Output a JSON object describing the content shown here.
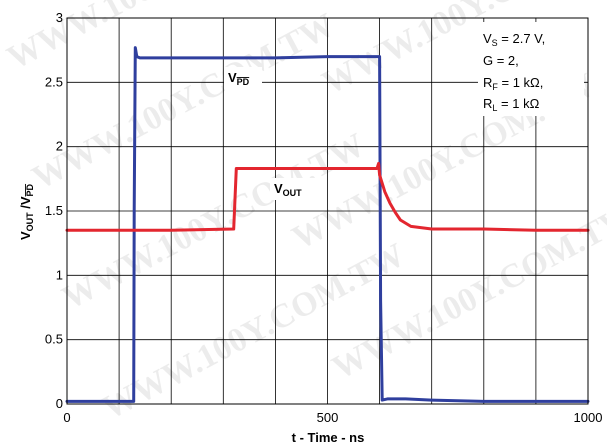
{
  "chart_data": {
    "type": "line",
    "xlabel": "t - Time - ns",
    "ylabel": "VOUT /VPD",
    "xlim": [
      0,
      1000
    ],
    "ylim": [
      0,
      3
    ],
    "xticks": [
      "0",
      "500",
      "1000"
    ],
    "yticks": [
      "0",
      "0.5",
      "1",
      "1.5",
      "2",
      "2.5",
      "3"
    ],
    "grid": true,
    "colors": {
      "VPD": "#2f3f9e",
      "VOUT": "#e3262f"
    },
    "series": [
      {
        "name": "VPD",
        "x": [
          0,
          120,
          128,
          129,
          131,
          134,
          140,
          200,
          300,
          400,
          500,
          550,
          595,
          600,
          602,
          605,
          615,
          650,
          700,
          800,
          900,
          1000
        ],
        "y": [
          0.02,
          0.02,
          0.02,
          1.5,
          2.77,
          2.7,
          2.69,
          2.69,
          2.69,
          2.69,
          2.7,
          2.7,
          2.7,
          2.7,
          0.8,
          0.03,
          0.04,
          0.04,
          0.03,
          0.02,
          0.02,
          0.02
        ]
      },
      {
        "name": "VOUT",
        "x": [
          0,
          100,
          200,
          320,
          325,
          330,
          400,
          500,
          580,
          595,
          598,
          600,
          610,
          620,
          630,
          640,
          660,
          700,
          800,
          900,
          1000
        ],
        "y": [
          1.35,
          1.35,
          1.35,
          1.36,
          1.83,
          1.83,
          1.83,
          1.83,
          1.83,
          1.83,
          1.87,
          1.78,
          1.65,
          1.56,
          1.49,
          1.43,
          1.38,
          1.36,
          1.36,
          1.35,
          1.35
        ]
      }
    ],
    "series_labels": [
      "V",
      "PD",
      "V",
      "OUT"
    ],
    "conditions": [
      {
        "main": "V",
        "sub": "S",
        "rest": " = 2.7 V,"
      },
      {
        "main": "G = 2,",
        "sub": "",
        "rest": ""
      },
      {
        "main": "R",
        "sub": "F",
        "rest": " = 1 kΩ,"
      },
      {
        "main": "R",
        "sub": "L",
        "rest": " = 1 kΩ"
      }
    ],
    "ylabel_parts": [
      "V",
      "OUT",
      " /V",
      "PD"
    ]
  },
  "watermark": "WWW.100Y.COM.TW"
}
